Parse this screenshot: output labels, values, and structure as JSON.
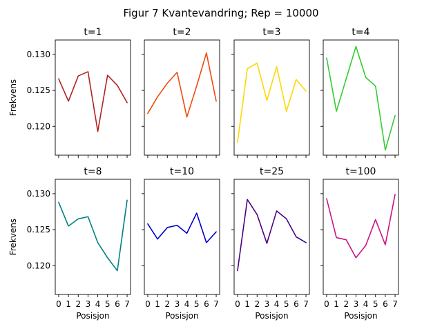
{
  "title": "Figur 7 Kvantevandring; Rep = 10000",
  "chart_data": {
    "type": "line",
    "title": "Figur 7 Kvantevandring; Rep = 10000",
    "xlabel": "Posisjon",
    "ylabel": "Frekvens",
    "x": [
      0,
      1,
      2,
      3,
      4,
      5,
      6,
      7
    ],
    "xticks": [
      "0",
      "1",
      "2",
      "3",
      "4",
      "5",
      "6",
      "7"
    ],
    "yticks": [
      "0.120",
      "0.125",
      "0.130"
    ],
    "ylim": [
      0.116,
      0.132
    ],
    "grid": false,
    "layout": "2 rows x 4 columns, shared axes",
    "panels": [
      {
        "title": "t=1",
        "color": "#b22222",
        "values": [
          0.1266,
          0.1235,
          0.127,
          0.1276,
          0.1193,
          0.1271,
          0.1257,
          0.1233
        ]
      },
      {
        "title": "t=2",
        "color": "#f04a0a",
        "values": [
          0.1218,
          0.1241,
          0.126,
          0.1275,
          0.1213,
          0.1256,
          0.1302,
          0.1235
        ]
      },
      {
        "title": "t=3",
        "color": "#ffd700",
        "values": [
          0.1178,
          0.128,
          0.1288,
          0.1236,
          0.1283,
          0.1221,
          0.1265,
          0.1249
        ]
      },
      {
        "title": "t=4",
        "color": "#32cd32",
        "values": [
          0.1295,
          0.1221,
          0.1266,
          0.1311,
          0.1268,
          0.1256,
          0.1167,
          0.1215
        ]
      },
      {
        "title": "t=8",
        "color": "#008080",
        "values": [
          0.1288,
          0.1255,
          0.1265,
          0.1268,
          0.1232,
          0.1211,
          0.1193,
          0.1291
        ]
      },
      {
        "title": "t=10",
        "color": "#0000cd",
        "values": [
          0.1258,
          0.1237,
          0.1253,
          0.1256,
          0.1245,
          0.1273,
          0.1232,
          0.1247
        ]
      },
      {
        "title": "t=25",
        "color": "#4b0082",
        "values": [
          0.1193,
          0.1292,
          0.1271,
          0.1231,
          0.1276,
          0.1265,
          0.124,
          0.1232
        ]
      },
      {
        "title": "t=100",
        "color": "#c71585",
        "values": [
          0.1293,
          0.1239,
          0.1236,
          0.1211,
          0.1228,
          0.1264,
          0.1229,
          0.1299
        ]
      }
    ]
  }
}
